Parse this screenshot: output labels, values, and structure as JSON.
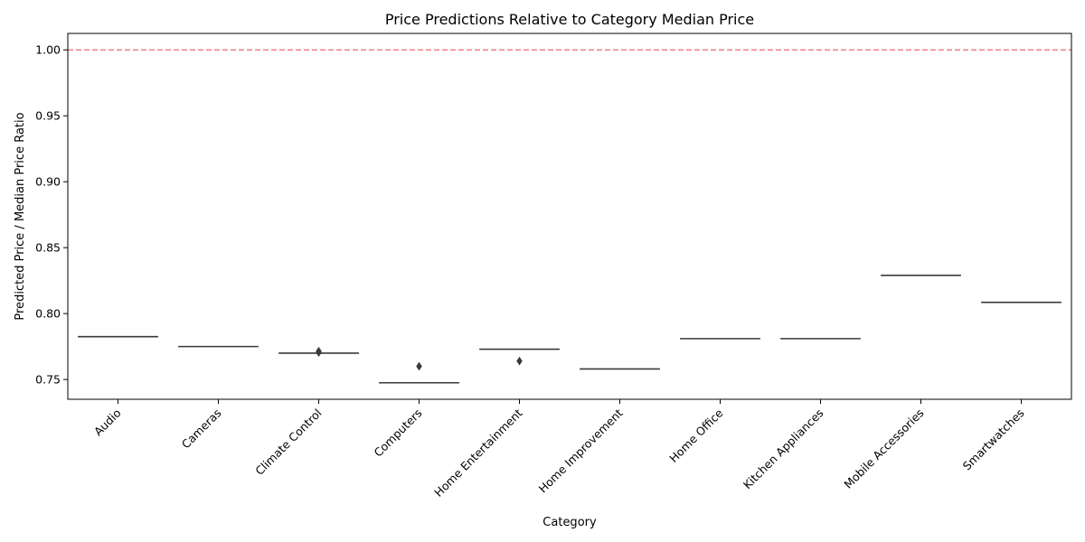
{
  "chart_data": {
    "type": "box",
    "title": "Price Predictions Relative to Category Median Price",
    "xlabel": "Category",
    "ylabel": "Predicted Price / Median Price Ratio",
    "ylim": [
      0.735,
      1.0125
    ],
    "yticks": [
      0.75,
      0.8,
      0.85,
      0.9,
      0.95,
      1.0
    ],
    "ytick_labels": [
      "0.75",
      "0.80",
      "0.85",
      "0.90",
      "0.95",
      "1.00"
    ],
    "reference_line": {
      "value": 1.0,
      "color": "#f08080",
      "style": "dashed"
    },
    "box_color": "#3a3a3a",
    "categories": [
      "Audio",
      "Cameras",
      "Climate Control",
      "Computers",
      "Home Entertainment",
      "Home Improvement",
      "Home Office",
      "Kitchen Appliances",
      "Mobile Accessories",
      "Smartwatches"
    ],
    "medians": [
      0.7825,
      0.775,
      0.77,
      0.7475,
      0.773,
      0.758,
      0.781,
      0.781,
      0.829,
      0.8085
    ],
    "outliers": [
      {
        "category": "Climate Control",
        "values": [
          0.7705,
          0.7715
        ]
      },
      {
        "category": "Computers",
        "values": [
          0.76
        ]
      },
      {
        "category": "Home Entertainment",
        "values": [
          0.764
        ]
      }
    ],
    "grid": false,
    "legend": "none"
  }
}
